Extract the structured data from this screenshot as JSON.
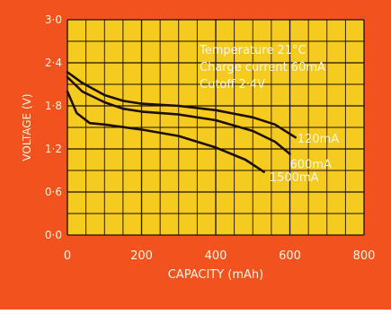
{
  "colors": {
    "frame": "#f2521d",
    "plot_bg": "#f6cb1f",
    "grid": "#1c0f08",
    "curve": "#1c0f08",
    "text": "#fff6e6"
  },
  "chart_data": {
    "type": "line",
    "xlabel": "CAPACITY (mAh)",
    "ylabel": "VOLTAGE (V)",
    "xlim": [
      0,
      800
    ],
    "ylim": [
      0.0,
      3.0
    ],
    "x_ticks": [
      0,
      200,
      400,
      600,
      800
    ],
    "y_ticks": [
      0.0,
      0.6,
      1.2,
      1.8,
      2.4,
      3.0
    ],
    "x_tick_labels": [
      "0",
      "200",
      "400",
      "600",
      "800"
    ],
    "y_tick_labels": [
      "0·0",
      "0·6",
      "1·2",
      "1·8",
      "2·4",
      "3·0"
    ],
    "grid": true,
    "annotation_lines": [
      "Temperature 21°C",
      "Charge current 60mA",
      "Cutoff 2·4V"
    ],
    "series": [
      {
        "name": "120mA",
        "label_at": [
          620,
          1.29
        ],
        "points": [
          [
            0,
            2.27
          ],
          [
            40,
            2.12
          ],
          [
            100,
            1.95
          ],
          [
            150,
            1.87
          ],
          [
            200,
            1.83
          ],
          [
            300,
            1.8
          ],
          [
            400,
            1.74
          ],
          [
            500,
            1.64
          ],
          [
            560,
            1.54
          ],
          [
            615,
            1.36
          ]
        ]
      },
      {
        "name": "600mA",
        "label_at": [
          600,
          0.93
        ],
        "points": [
          [
            0,
            2.2
          ],
          [
            40,
            2.0
          ],
          [
            100,
            1.85
          ],
          [
            150,
            1.76
          ],
          [
            200,
            1.72
          ],
          [
            300,
            1.68
          ],
          [
            400,
            1.6
          ],
          [
            500,
            1.45
          ],
          [
            560,
            1.3
          ],
          [
            600,
            1.13
          ]
        ]
      },
      {
        "name": "1500mA",
        "label_at": [
          545,
          0.75
        ],
        "points": [
          [
            0,
            2.0
          ],
          [
            25,
            1.7
          ],
          [
            60,
            1.56
          ],
          [
            100,
            1.54
          ],
          [
            200,
            1.47
          ],
          [
            300,
            1.38
          ],
          [
            400,
            1.22
          ],
          [
            480,
            1.05
          ],
          [
            530,
            0.88
          ]
        ]
      }
    ]
  }
}
